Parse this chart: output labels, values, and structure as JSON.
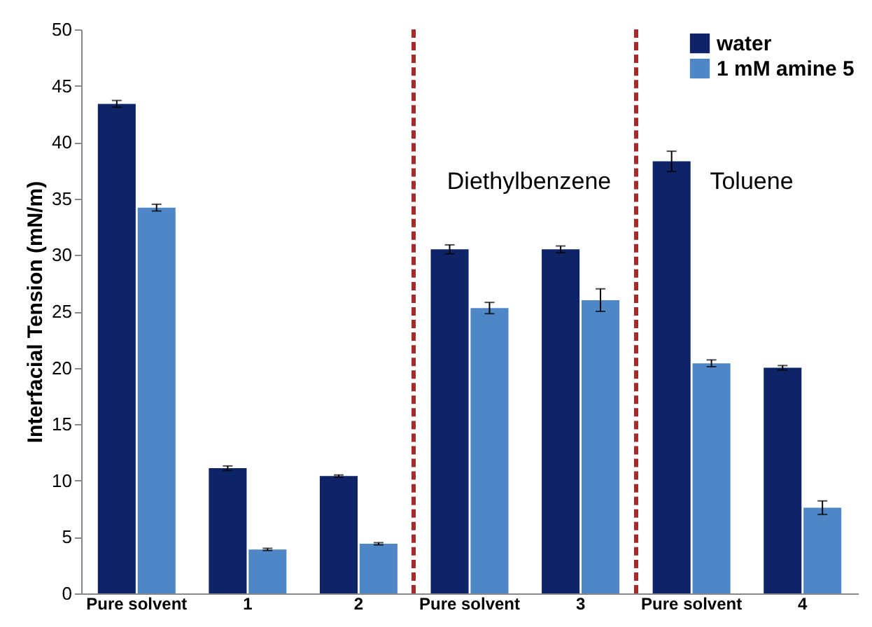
{
  "chart_data": {
    "type": "bar",
    "ylabel": "Interfacial Tension (mN/m)",
    "categories": [
      "Pure solvent",
      "1",
      "2",
      "Pure solvent",
      "3",
      "Pure solvent",
      "4"
    ],
    "series": [
      {
        "name": "water",
        "color": "#0e2466",
        "values": [
          43.4,
          11.1,
          10.4,
          30.5,
          30.5,
          38.3,
          20.0
        ],
        "errors": [
          0.3,
          0.2,
          0.1,
          0.4,
          0.3,
          0.9,
          0.2
        ]
      },
      {
        "name": "1 mM amine 5",
        "color": "#4f86c6",
        "values": [
          34.2,
          3.9,
          4.4,
          25.3,
          26.0,
          20.4,
          7.6
        ],
        "errors": [
          0.3,
          0.1,
          0.1,
          0.5,
          1.0,
          0.3,
          0.6
        ]
      }
    ],
    "ylim": [
      0,
      50
    ],
    "yticks": [
      0,
      5,
      10,
      15,
      20,
      25,
      30,
      35,
      40,
      45,
      50
    ],
    "grid": false,
    "legend": "top right",
    "annotations": [
      "Diethylbenzene",
      "Toluene"
    ]
  }
}
